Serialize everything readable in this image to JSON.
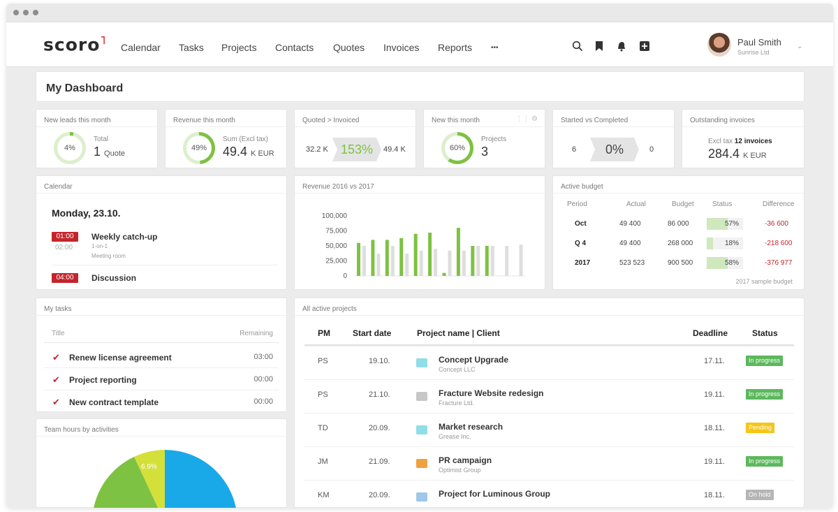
{
  "nav": {
    "logo": "scoro",
    "items": [
      "Calendar",
      "Tasks",
      "Projects",
      "Contacts",
      "Quotes",
      "Invoices",
      "Reports"
    ],
    "more": "•••",
    "icons": [
      "search-icon",
      "bookmark-icon",
      "bell-icon",
      "add-icon"
    ],
    "user_name": "Paul Smith",
    "user_company": "Sunrise Ltd"
  },
  "dashboard": {
    "title": "My Dashboard"
  },
  "kpis": {
    "leads": {
      "title": "New leads this month",
      "percent_label": "4%",
      "progress": 0.04,
      "label": "Total",
      "value": "1",
      "unit": "Quote"
    },
    "revenue": {
      "title": "Revenue this month",
      "percent_label": "49%",
      "progress": 0.49,
      "label": "Sum (Excl tax)",
      "value": "49.4",
      "unit": "K EUR"
    },
    "quoted": {
      "title": "Quoted > Invoiced",
      "left": "32.2 K",
      "percent": "153%",
      "right": "49.4 K"
    },
    "new_month": {
      "title": "New this month",
      "percent_label": "60%",
      "progress": 0.6,
      "label": "Projects",
      "value": "3"
    },
    "started": {
      "title": "Started vs Completed",
      "left": "6",
      "percent": "0%",
      "right": "0"
    },
    "outstanding": {
      "title": "Outstanding invoices",
      "label": "Excl tax",
      "count": "12 invoices",
      "value": "284.4",
      "unit": "K EUR"
    }
  },
  "calendar": {
    "title": "Calendar",
    "date": "Monday, 23.10.",
    "events": [
      {
        "start": "01:00",
        "end": "02:00",
        "title": "Weekly catch-up",
        "sub1": "1-on-1",
        "sub2": "Meeting room"
      },
      {
        "start": "04:00",
        "title": "Discussion"
      }
    ]
  },
  "revenue_chart": {
    "title": "Revenue 2016 vs 2017"
  },
  "chart_data": {
    "type": "bar",
    "title": "Revenue 2016 vs 2017",
    "ylim": [
      0,
      100000
    ],
    "yticks": [
      "100,000",
      "75,000",
      "50,000",
      "25,000",
      "0"
    ],
    "series": [
      {
        "values": [
          55000,
          60000,
          60000,
          63000,
          70000,
          72000,
          5000,
          80000,
          50000,
          50000,
          0,
          0
        ]
      },
      {
        "values": [
          50000,
          37000,
          50000,
          37000,
          42000,
          45000,
          42000,
          42000,
          50000,
          50000,
          50000,
          52000
        ]
      }
    ],
    "colors": {
      "s1": "#7dc242",
      "s2": "#dedede"
    }
  },
  "budget": {
    "title": "Active budget",
    "columns": [
      "Period",
      "Actual",
      "Budget",
      "Status",
      "Difference"
    ],
    "rows": [
      {
        "period": "Oct",
        "actual": "49 400",
        "budget": "86 000",
        "status": "57%",
        "ratio": 0.57,
        "diff": "-36 600"
      },
      {
        "period": "Q 4",
        "actual": "49 400",
        "budget": "268 000",
        "status": "18%",
        "ratio": 0.18,
        "diff": "-218 600"
      },
      {
        "period": "2017",
        "actual": "523 523",
        "budget": "900 500",
        "status": "58%",
        "ratio": 0.58,
        "diff": "-376 977"
      }
    ],
    "footer": "2017 sample budget"
  },
  "tasks": {
    "title": "My tasks",
    "col_title": "Title",
    "col_remaining": "Remaining",
    "items": [
      {
        "name": "Renew license agreement",
        "remaining": "03:00"
      },
      {
        "name": "Project reporting",
        "remaining": "00:00"
      },
      {
        "name": "New contract template",
        "remaining": "00:00"
      }
    ]
  },
  "team_hours": {
    "title": "Team hours by activities",
    "slice_label": "6.9%"
  },
  "projects": {
    "title": "All active projects",
    "columns": [
      "PM",
      "Start date",
      "Project name | Client",
      "Deadline",
      "Status"
    ],
    "rows": [
      {
        "pm": "PS",
        "start": "19.10.",
        "name": "Concept Upgrade",
        "client": "Concept LLC",
        "deadline": "17.11.",
        "status": "In progress",
        "folder": "#8fdde6",
        "status_color": "#5cb85c"
      },
      {
        "pm": "PS",
        "start": "21.10.",
        "name": "Fracture Website redesign",
        "client": "Fracture Ltd.",
        "deadline": "19.11.",
        "status": "In progress",
        "folder": "#c7c7c7",
        "status_color": "#5cb85c"
      },
      {
        "pm": "TD",
        "start": "20.09.",
        "name": "Market research",
        "client": "Grease Inc.",
        "deadline": "18.11.",
        "status": "Pending",
        "folder": "#8fdde6",
        "status_color": "#f5c518"
      },
      {
        "pm": "JM",
        "start": "21.09.",
        "name": "PR campaign",
        "client": "Optimist Group",
        "deadline": "19.11.",
        "status": "In progress",
        "folder": "#f0a040",
        "status_color": "#5cb85c"
      },
      {
        "pm": "KM",
        "start": "20.09.",
        "name": "Project for Luminous Group",
        "client": "",
        "deadline": "18.11.",
        "status": "On hold",
        "folder": "#9ec7ea",
        "status_color": "#b5b5b5"
      }
    ]
  }
}
